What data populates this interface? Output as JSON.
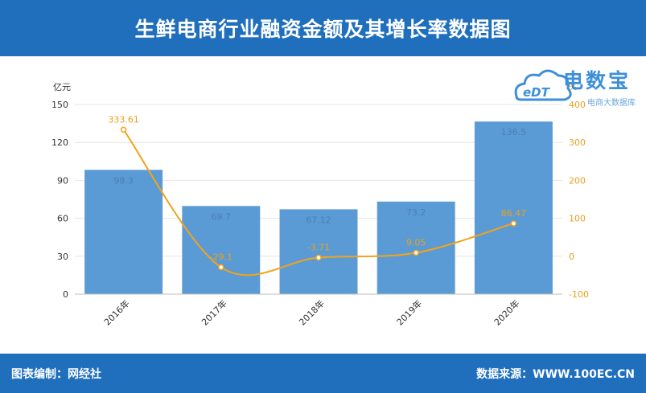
{
  "title": "生鲜电商行业融资金额及其增长率数据图",
  "footer": {
    "left": "图表编制：网经社",
    "right": "数据来源：WWW.100EC.CN"
  },
  "logo": {
    "name": "电数宝",
    "sub": "电商大数据库"
  },
  "chart_data": {
    "type": "bar",
    "categories": [
      "2016年",
      "2017年",
      "2018年",
      "2019年",
      "2020年"
    ],
    "series": [
      {
        "type": "bar",
        "values": [
          98.3,
          69.7,
          67.12,
          73.2,
          136.5
        ],
        "labels": [
          "98.3",
          "69.7",
          "67.12",
          "73.2",
          "136.5"
        ],
        "axis": "left"
      },
      {
        "type": "line",
        "values": [
          333.61,
          -29.1,
          -3.71,
          9.05,
          86.47
        ],
        "labels": [
          "333.61",
          "-29.1",
          "-3.71",
          "9.05",
          "86.47"
        ],
        "axis": "right"
      }
    ],
    "y_left": {
      "unit": "亿元",
      "min": 0,
      "max": 150,
      "ticks": [
        0,
        30,
        60,
        90,
        120,
        150
      ]
    },
    "y_right": {
      "unit": "%",
      "min": -100,
      "max": 400,
      "ticks": [
        -100,
        0,
        100,
        200,
        300,
        400
      ]
    },
    "colors": {
      "bar": "#5b9bd5",
      "bar_label": "#4a7fb5",
      "line": "#f2a31b",
      "line_label": "#e8a020",
      "axis_right": "#e8a020"
    },
    "grid": true
  }
}
